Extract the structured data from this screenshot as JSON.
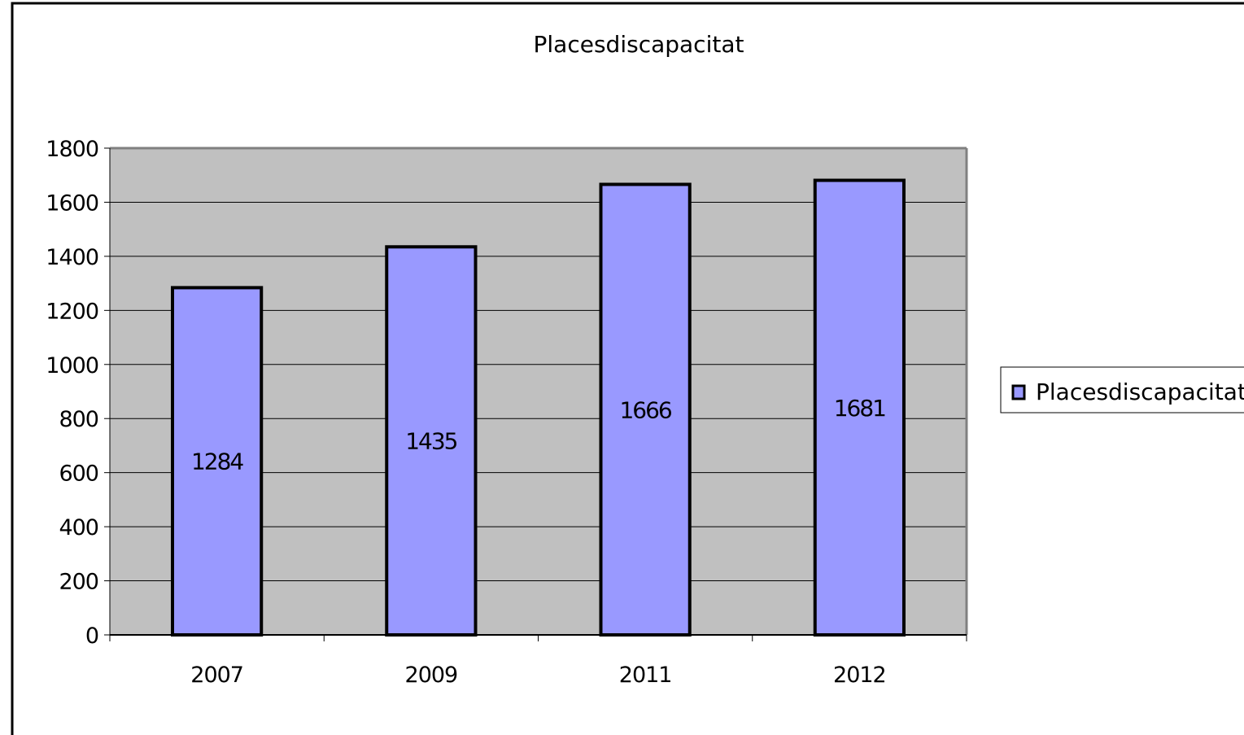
{
  "chart_data": {
    "type": "bar",
    "title": "Placesdiscapacitat",
    "categories": [
      "2007",
      "2009",
      "2011",
      "2012"
    ],
    "series": [
      {
        "name": "Placesdiscapacitat",
        "values": [
          1284,
          1435,
          1666,
          1681
        ],
        "color": "#9999ff"
      }
    ],
    "data_labels": [
      "1284",
      "1435",
      "1666",
      "1681"
    ],
    "yticks": [
      "0",
      "200",
      "400",
      "600",
      "800",
      "1000",
      "1200",
      "1400",
      "1600",
      "1800"
    ],
    "ylim": [
      0,
      1800
    ],
    "xlabel": "",
    "ylabel": "",
    "grid": true,
    "legend_position": "right",
    "plot_background": "#c0c0c0",
    "gridline_color": "#000000",
    "bar_border_color": "#000000"
  }
}
